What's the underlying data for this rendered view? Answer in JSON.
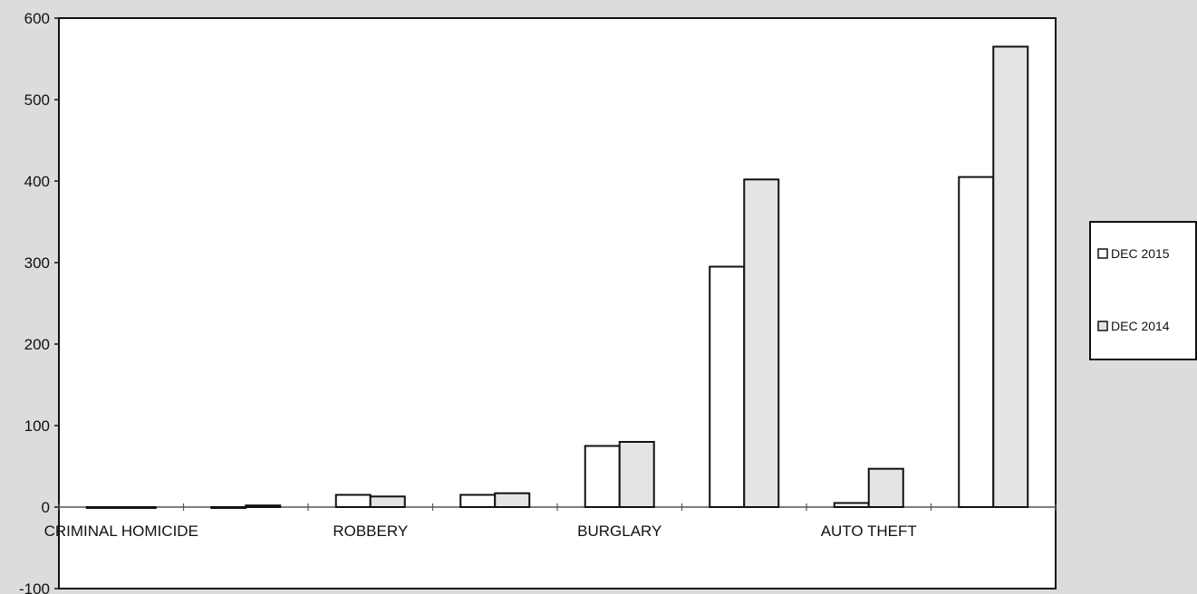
{
  "chart_data": {
    "type": "bar",
    "categories": [
      "CRIMINAL HOMICIDE",
      "",
      "ROBBERY",
      "",
      "BURGLARY",
      "",
      "AUTO THEFT",
      ""
    ],
    "series": [
      {
        "name": "DEC 2015",
        "values": [
          0,
          0,
          15,
          15,
          75,
          295,
          5,
          405
        ],
        "color": "#ffffff"
      },
      {
        "name": "DEC 2014",
        "values": [
          0,
          2,
          13,
          17,
          80,
          402,
          47,
          565
        ],
        "color": "#e4e4e4"
      }
    ],
    "ylim": [
      -100,
      600
    ],
    "yticks": [
      -100,
      0,
      100,
      200,
      300,
      400,
      500,
      600
    ],
    "legend_position": "right",
    "grid": false
  }
}
